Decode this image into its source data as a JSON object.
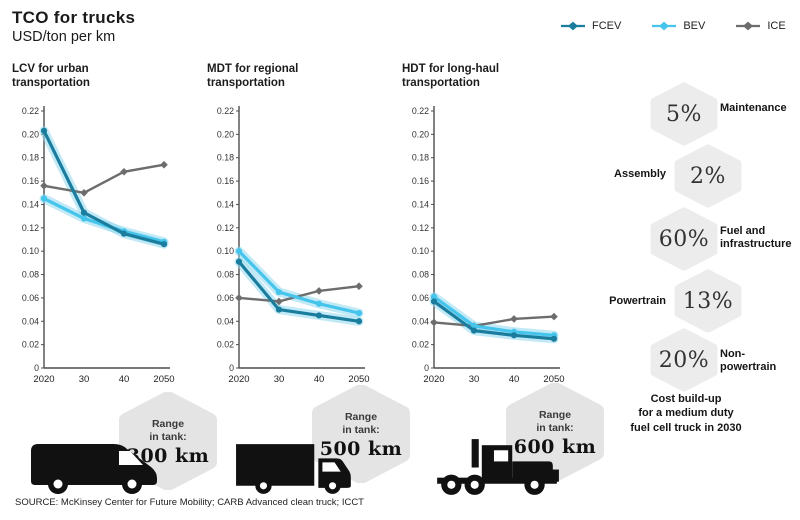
{
  "header": {
    "title": "TCO for trucks",
    "subtitle": "USD/ton per km"
  },
  "legend": [
    {
      "name": "FCEV",
      "color": "#1b7d9e"
    },
    {
      "name": "BEV",
      "color": "#45c4ec"
    },
    {
      "name": "ICE",
      "color": "#6d6d6d"
    }
  ],
  "colors": {
    "fcev": "#1b7d9e",
    "bev": "#45c4ec",
    "ice": "#6d6d6d",
    "halo": "#8ed7ef",
    "axis": "#4d4d4d",
    "hex_fill": "#ececec",
    "bubble_fill": "#e4e4e4"
  },
  "chart_data": [
    {
      "type": "line",
      "title": "LCV for urban\ntransportation",
      "x": [
        2020,
        2030,
        2040,
        2050
      ],
      "x_tick_labels": [
        "2020",
        "30",
        "40",
        "2050"
      ],
      "ylim": [
        0,
        0.22
      ],
      "y_tick_step": 0.02,
      "ylabel": "USD/ton per km",
      "series": [
        {
          "name": "FCEV",
          "values": [
            0.203,
            0.133,
            0.115,
            0.106
          ]
        },
        {
          "name": "BEV",
          "values": [
            0.145,
            0.128,
            0.117,
            0.108
          ]
        },
        {
          "name": "ICE",
          "values": [
            0.156,
            0.15,
            0.168,
            0.174
          ]
        }
      ]
    },
    {
      "type": "line",
      "title": "MDT for regional\ntransportation",
      "x": [
        2020,
        2030,
        2040,
        2050
      ],
      "x_tick_labels": [
        "2020",
        "30",
        "40",
        "2050"
      ],
      "ylim": [
        0,
        0.22
      ],
      "y_tick_step": 0.02,
      "ylabel": "USD/ton per km",
      "series": [
        {
          "name": "FCEV",
          "values": [
            0.091,
            0.05,
            0.045,
            0.04
          ]
        },
        {
          "name": "BEV",
          "values": [
            0.1,
            0.065,
            0.055,
            0.047
          ]
        },
        {
          "name": "ICE",
          "values": [
            0.06,
            0.057,
            0.066,
            0.07
          ]
        }
      ]
    },
    {
      "type": "line",
      "title": "HDT for long-haul\ntransportation",
      "x": [
        2020,
        2030,
        2040,
        2050
      ],
      "x_tick_labels": [
        "2020",
        "30",
        "40",
        "2050"
      ],
      "ylim": [
        0,
        0.22
      ],
      "y_tick_step": 0.02,
      "ylabel": "USD/ton per km",
      "series": [
        {
          "name": "FCEV",
          "values": [
            0.057,
            0.032,
            0.028,
            0.025
          ]
        },
        {
          "name": "BEV",
          "values": [
            0.061,
            0.036,
            0.031,
            0.028
          ]
        },
        {
          "name": "ICE",
          "values": [
            0.039,
            0.036,
            0.042,
            0.044
          ]
        }
      ]
    }
  ],
  "badges": [
    {
      "value": "5%",
      "label": "Maintenance",
      "side": "right"
    },
    {
      "value": "2%",
      "label": "Assembly",
      "side": "left"
    },
    {
      "value": "60%",
      "label": "Fuel and\ninfrastructure",
      "side": "right"
    },
    {
      "value": "13%",
      "label": "Powertrain",
      "side": "left"
    },
    {
      "value": "20%",
      "label": "Non-\npowertrain",
      "side": "right"
    }
  ],
  "badges_caption": "Cost build-up\nfor a medium duty\nfuel cell truck in 2030",
  "trucks": [
    {
      "name": "LCV van",
      "range_label": "Range\nin tank:",
      "range_value": "300 km"
    },
    {
      "name": "MDT box truck",
      "range_label": "Range\nin tank:",
      "range_value": "500 km"
    },
    {
      "name": "HDT semi truck",
      "range_label": "Range\nin tank:",
      "range_value": "600 km"
    }
  ],
  "source": "SOURCE: McKinsey Center for Future Mobility; CARB Advanced clean truck; ICCT"
}
